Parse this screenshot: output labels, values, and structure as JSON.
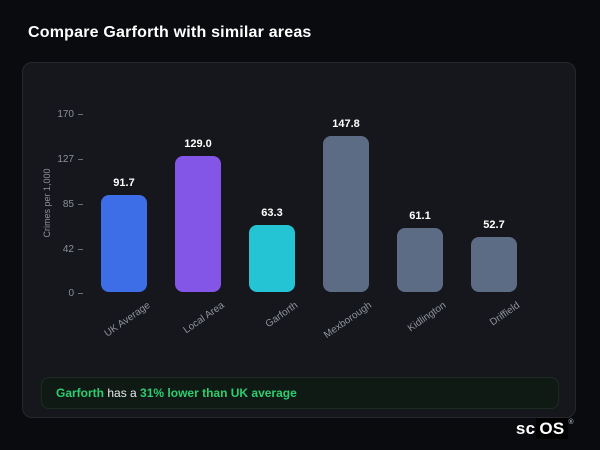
{
  "page": {
    "title": "Compare Garforth with similar areas"
  },
  "chart_data": {
    "type": "bar",
    "title": "Compare Garforth with similar areas",
    "categories": [
      "UK Average",
      "Local Area",
      "Garforth",
      "Mexborough",
      "Kidlington",
      "Driffield"
    ],
    "values": [
      91.7,
      129.0,
      63.3,
      147.8,
      61.1,
      52.7
    ],
    "value_labels": [
      "91.7",
      "129.0",
      "63.3",
      "147.8",
      "61.1",
      "52.7"
    ],
    "bar_colors": [
      "#3e6de8",
      "#8456e8",
      "#25c4d4",
      "#5d6c85",
      "#5d6c85",
      "#5d6c85"
    ],
    "ylabel": "Crimes per 1,000",
    "xlabel": "",
    "yticks": [
      170,
      127,
      85,
      42,
      0
    ],
    "ylim": [
      0,
      170
    ],
    "grid": false,
    "legend": false,
    "value_label_color": "#ffffff",
    "axis_text_color": "#8b919a"
  },
  "insight": {
    "subject": "Garforth",
    "connector": " has a ",
    "highlight": "31% lower than UK average",
    "highlight_color": "#2ecc71"
  },
  "logo": {
    "prefix": "sc",
    "suffix": "OS",
    "registered": "®"
  }
}
